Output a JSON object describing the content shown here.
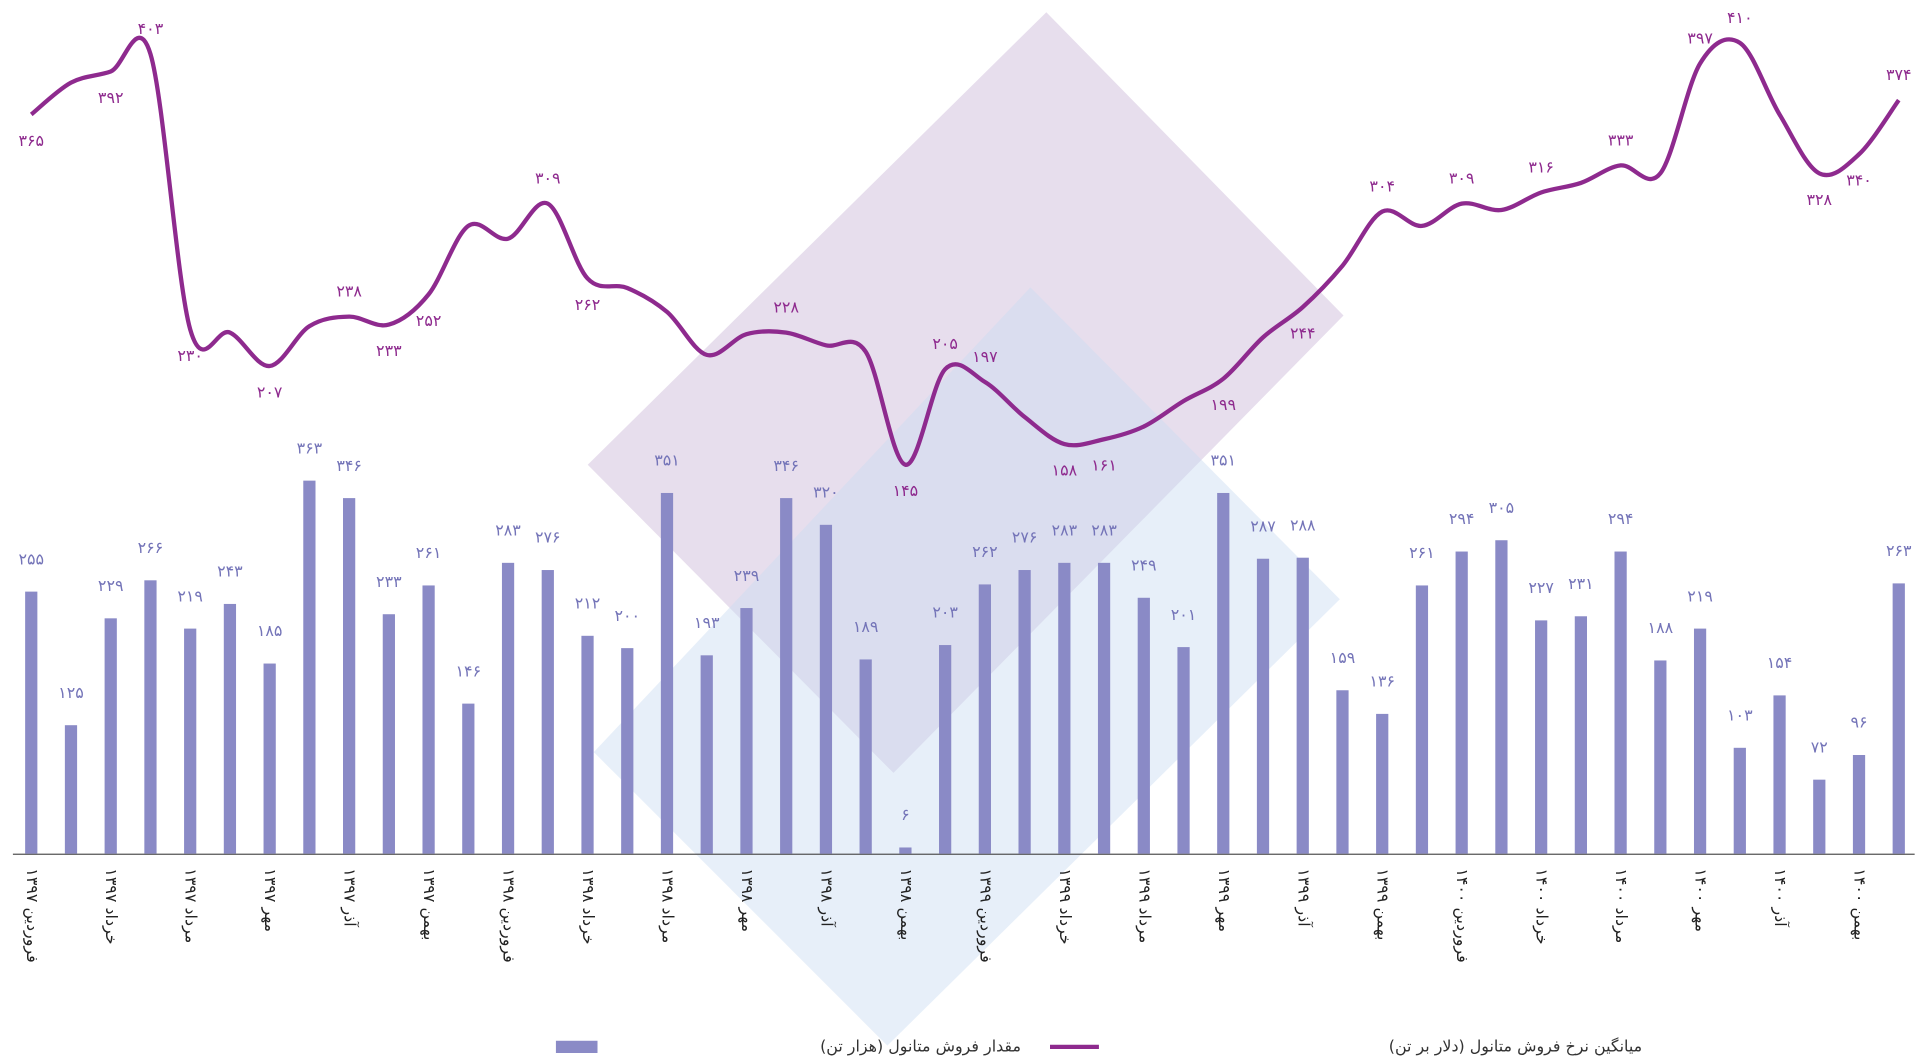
{
  "chart_data": {
    "type": "bar",
    "categories": [
      "فروردین ۱۳۹۷",
      null,
      "خرداد ۱۳۹۷",
      null,
      "مرداد ۱۳۹۷",
      null,
      "مهر ۱۳۹۷",
      null,
      "آذر ۱۳۹۷",
      null,
      "بهمن ۱۳۹۷",
      null,
      "فروردین ۱۳۹۸",
      null,
      "خرداد ۱۳۹۸",
      null,
      "مرداد ۱۳۹۸",
      null,
      "مهر ۱۳۹۸",
      null,
      "آذر ۱۳۹۸",
      null,
      "بهمن ۱۳۹۸",
      null,
      "فروردین ۱۳۹۹",
      null,
      "خرداد ۱۳۹۹",
      null,
      "مرداد ۱۳۹۹",
      null,
      "مهر ۱۳۹۹",
      null,
      "آذر ۱۳۹۹",
      null,
      "بهمن ۱۳۹۹",
      null,
      "فروردین ۱۴۰۰",
      null,
      "خرداد ۱۴۰۰",
      null,
      "مرداد ۱۴۰۰",
      null,
      "مهر ۱۴۰۰",
      null,
      "آذر ۱۴۰۰",
      null,
      "بهمن ۱۴۰۰",
      null
    ],
    "series": [
      {
        "name": "مقدار فروش متانول (هزار تن)",
        "type": "bar",
        "color": "#8a8ac6",
        "label_color": "#7474b8",
        "values": [
          255,
          125,
          229,
          266,
          219,
          243,
          185,
          363,
          346,
          233,
          261,
          146,
          283,
          276,
          212,
          200,
          351,
          193,
          239,
          346,
          320,
          189,
          6,
          203,
          262,
          276,
          283,
          283,
          249,
          201,
          351,
          287,
          288,
          159,
          136,
          261,
          294,
          305,
          227,
          231,
          294,
          188,
          219,
          103,
          154,
          72,
          96,
          263
        ],
        "value_labels": [
          "۲۵۵",
          "۱۲۵",
          "۲۲۹",
          "۲۶۶",
          "۲۱۹",
          "۲۴۳",
          "۱۸۵",
          "۳۶۳",
          "۳۴۶",
          "۲۳۳",
          "۲۶۱",
          "۱۴۶",
          "۲۸۳",
          "۲۷۶",
          "۲۱۲",
          "۲۰۰",
          "۳۵۱",
          "۱۹۳",
          "۲۳۹",
          "۳۴۶",
          "۳۲۰",
          "۱۸۹",
          "۶",
          "۲۰۳",
          "۲۶۲",
          "۲۷۶",
          "۲۸۳",
          "۲۸۳",
          "۲۴۹",
          "۲۰۱",
          "۳۵۱",
          "۲۸۷",
          "۲۸۸",
          "۱۵۹",
          "۱۳۶",
          "۲۶۱",
          "۲۹۴",
          "۳۰۵",
          "۲۲۷",
          "۲۳۱",
          "۲۹۴",
          "۱۸۸",
          "۲۱۹",
          "۱۰۳",
          "۱۵۴",
          "۷۲",
          "۹۶",
          "۲۶۳"
        ]
      },
      {
        "name": "میانگین نرخ فروش متانول (دلار بر تن)",
        "type": "line",
        "color": "#8e2a8e",
        "label_color": "#8e2a8e",
        "values": [
          365,
          385,
          392,
          403,
          230,
          228,
          207,
          232,
          238,
          233,
          252,
          295,
          287,
          309,
          262,
          256,
          241,
          214,
          227,
          228,
          220,
          216,
          145,
          205,
          197,
          175,
          158,
          161,
          169,
          185,
          199,
          225,
          244,
          270,
          304,
          295,
          309,
          305,
          316,
          322,
          333,
          328,
          397,
          410,
          365,
          328,
          340,
          374
        ],
        "value_labels": [
          "۳۶۵",
          null,
          "۳۹۲",
          "۴۰۳",
          "۲۳۰",
          null,
          "۲۰۷",
          null,
          "۲۳۸",
          "۲۳۳",
          "۲۵۲",
          null,
          null,
          "۳۰۹",
          "۲۶۲",
          null,
          null,
          null,
          null,
          "۲۲۸",
          null,
          null,
          "۱۴۵",
          "۲۰۵",
          "۱۹۷",
          null,
          "۱۵۸",
          "۱۶۱",
          null,
          null,
          "۱۹۹",
          null,
          "۲۴۴",
          null,
          "۳۰۴",
          null,
          "۳۰۹",
          null,
          "۳۱۶",
          null,
          "۳۳۳",
          null,
          "۳۹۷",
          "۴۱۰",
          null,
          "۳۲۸",
          "۳۴۰",
          "۳۷۴"
        ]
      }
    ],
    "legend": "bottom"
  }
}
